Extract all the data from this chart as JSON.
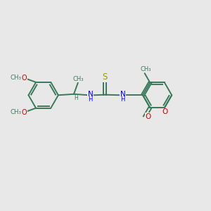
{
  "background_color": "#e8e8e8",
  "bond_color": "#3a7a5a",
  "bond_width": 1.4,
  "N_color": "#0000dd",
  "O_color": "#cc0000",
  "S_color": "#999900",
  "figsize": [
    3.0,
    3.0
  ],
  "dpi": 100,
  "xlim": [
    0,
    10
  ],
  "ylim": [
    0,
    10
  ]
}
